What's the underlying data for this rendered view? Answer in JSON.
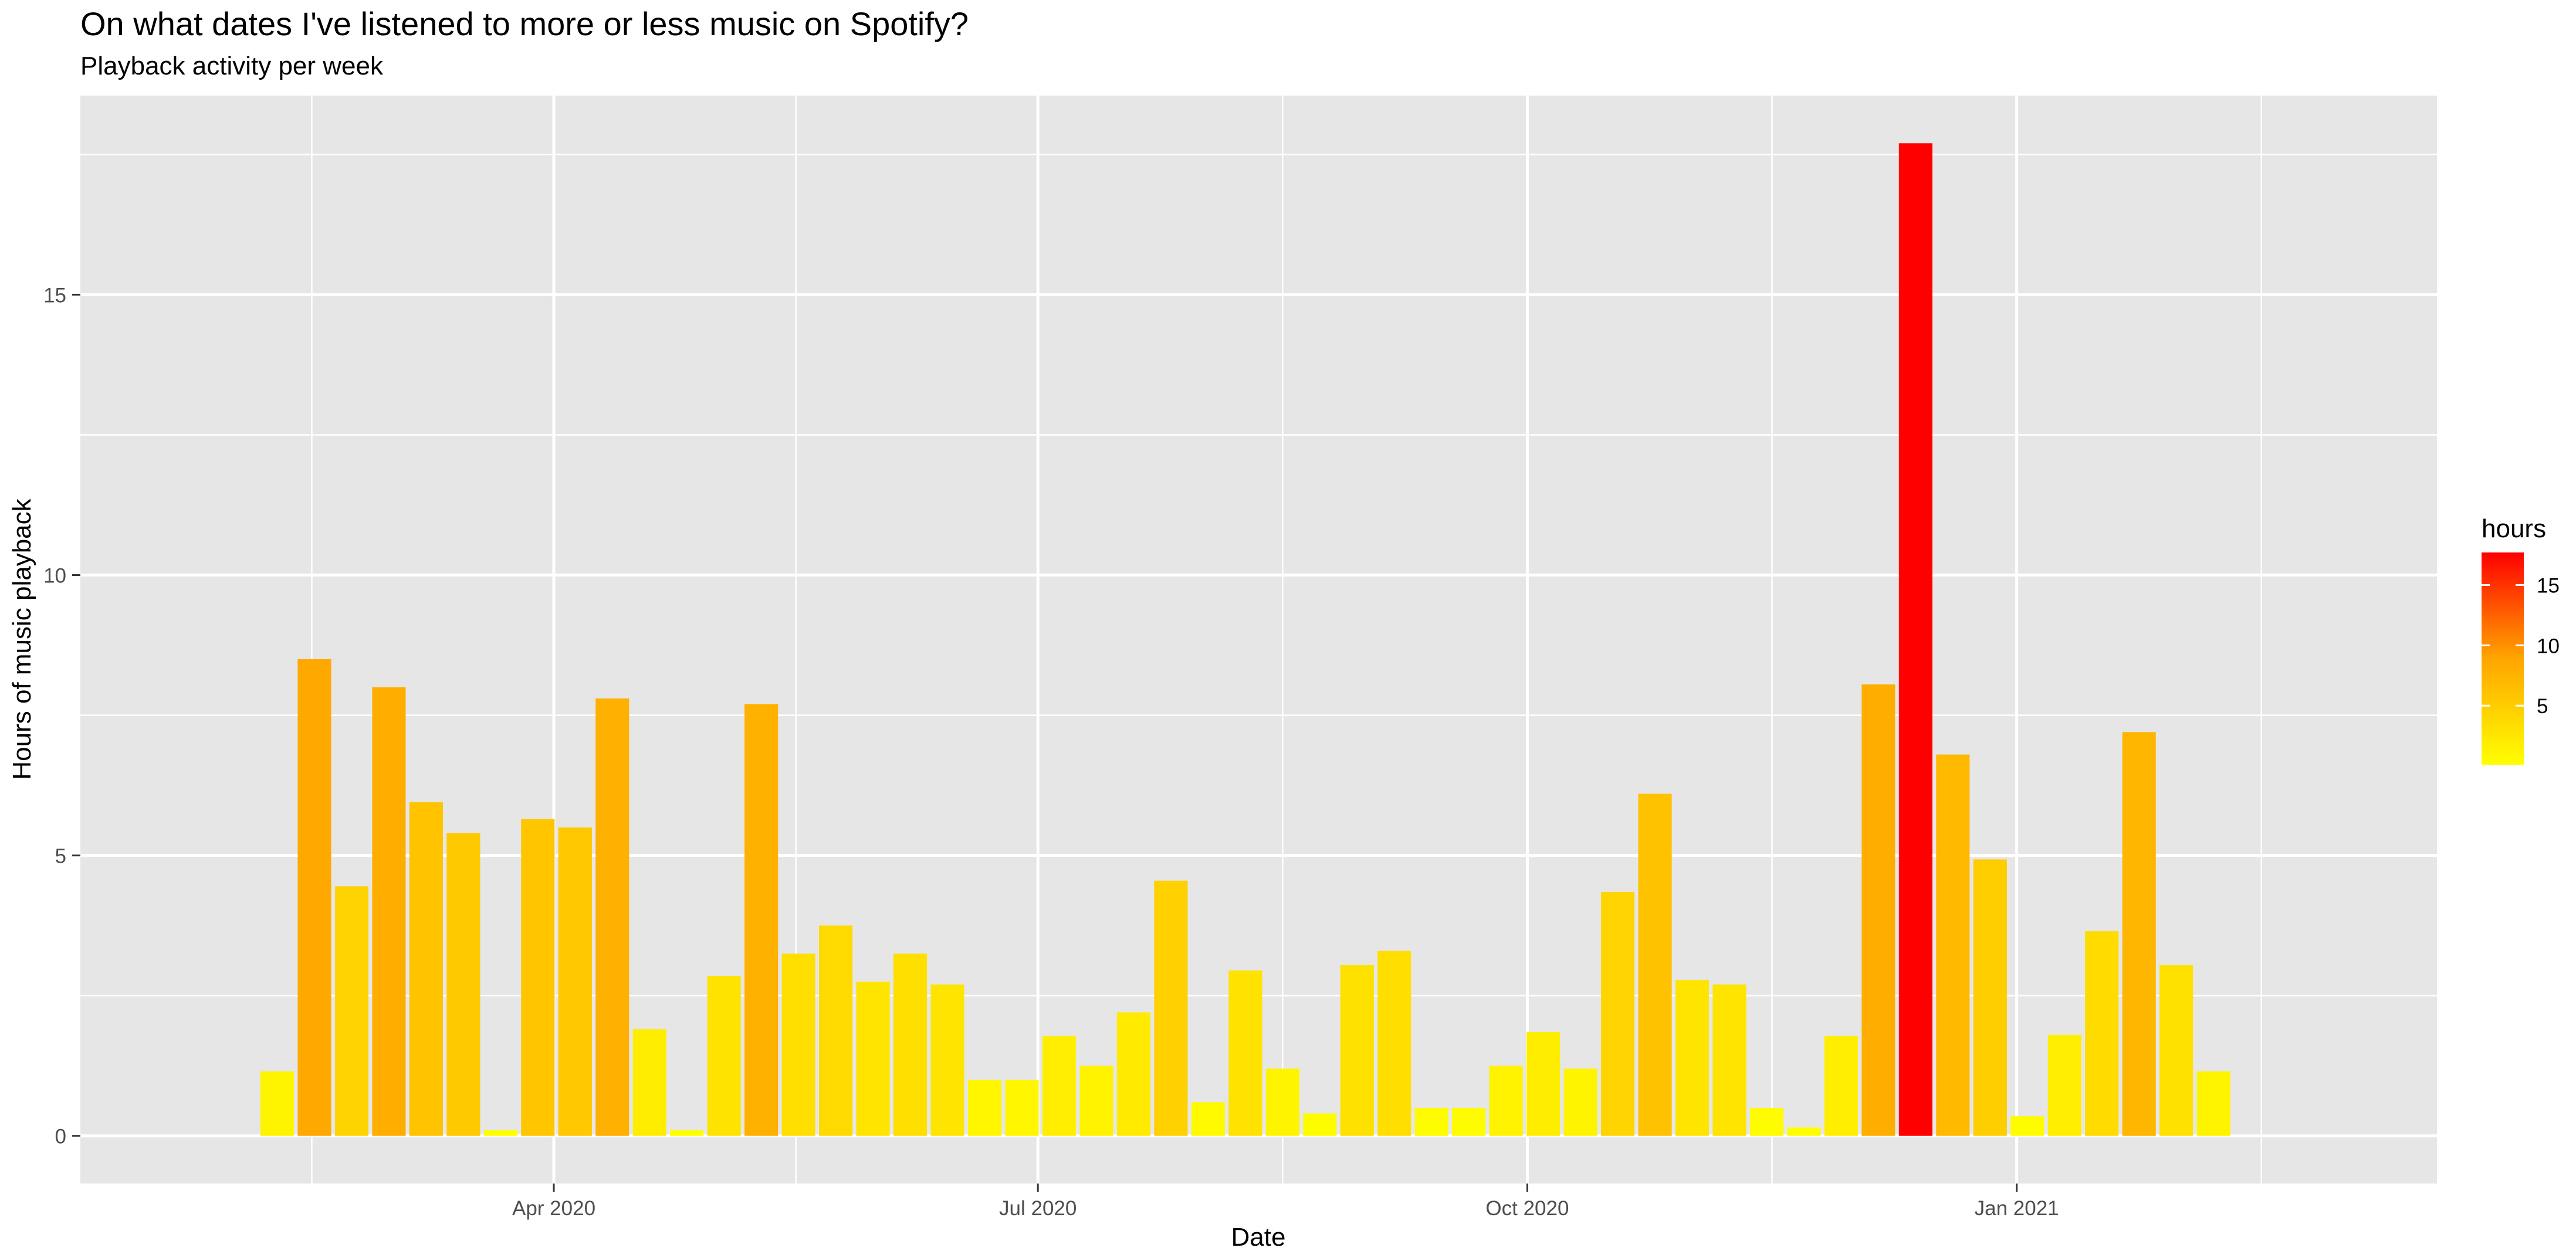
{
  "chart_data": {
    "type": "bar",
    "title": "On what dates I've listened to more or less music on Spotify?",
    "subtitle": "Playback activity per week",
    "xlabel": "Date",
    "ylabel": "Hours of music playback",
    "x_ticks": [
      {
        "date": "2020-04-01",
        "label": "Apr 2020"
      },
      {
        "date": "2020-07-01",
        "label": "Jul 2020"
      },
      {
        "date": "2020-10-01",
        "label": "Oct 2020"
      },
      {
        "date": "2021-01-01",
        "label": "Jan 2021"
      }
    ],
    "y_ticks": [
      0,
      5,
      10,
      15
    ],
    "xlim": [
      "2020-01-03",
      "2021-03-21"
    ],
    "ylim": [
      -0.85,
      18.55
    ],
    "grid": true,
    "colors": {
      "panel": "#e6e6e6",
      "grid": "#ffffff",
      "low": "#ffff00",
      "mid": "#ffa500",
      "high": "#ff0000"
    },
    "legend": {
      "title": "hours",
      "position": "right",
      "ticks": [
        5,
        10,
        15
      ],
      "range": [
        0.1,
        17.7
      ]
    },
    "x": [
      "2020-02-09",
      "2020-02-16",
      "2020-02-23",
      "2020-03-01",
      "2020-03-08",
      "2020-03-15",
      "2020-03-22",
      "2020-03-29",
      "2020-04-05",
      "2020-04-12",
      "2020-04-19",
      "2020-04-26",
      "2020-05-03",
      "2020-05-10",
      "2020-05-17",
      "2020-05-24",
      "2020-05-31",
      "2020-06-07",
      "2020-06-14",
      "2020-06-21",
      "2020-06-28",
      "2020-07-05",
      "2020-07-12",
      "2020-07-19",
      "2020-07-26",
      "2020-08-02",
      "2020-08-09",
      "2020-08-16",
      "2020-08-23",
      "2020-08-30",
      "2020-09-06",
      "2020-09-13",
      "2020-09-20",
      "2020-09-27",
      "2020-10-04",
      "2020-10-11",
      "2020-10-18",
      "2020-10-25",
      "2020-11-01",
      "2020-11-08",
      "2020-11-15",
      "2020-11-22",
      "2020-11-29",
      "2020-12-06",
      "2020-12-13",
      "2020-12-20",
      "2020-12-27",
      "2021-01-03",
      "2021-01-10",
      "2021-01-17",
      "2021-01-24",
      "2021-01-31",
      "2021-02-07"
    ],
    "values": [
      1.15,
      8.5,
      4.45,
      8.0,
      5.95,
      5.4,
      0.1,
      5.65,
      5.5,
      7.8,
      1.9,
      0.1,
      2.85,
      7.7,
      3.25,
      3.75,
      2.75,
      3.25,
      2.7,
      1.0,
      1.0,
      1.78,
      1.25,
      2.2,
      4.55,
      0.6,
      2.95,
      1.2,
      0.4,
      3.05,
      3.3,
      0.5,
      0.5,
      1.25,
      1.85,
      1.2,
      4.35,
      6.1,
      2.78,
      2.7,
      0.5,
      0.15,
      1.78,
      8.05,
      17.7,
      6.8,
      4.93,
      0.35,
      1.8,
      3.65,
      7.2,
      3.05,
      1.15
    ]
  }
}
